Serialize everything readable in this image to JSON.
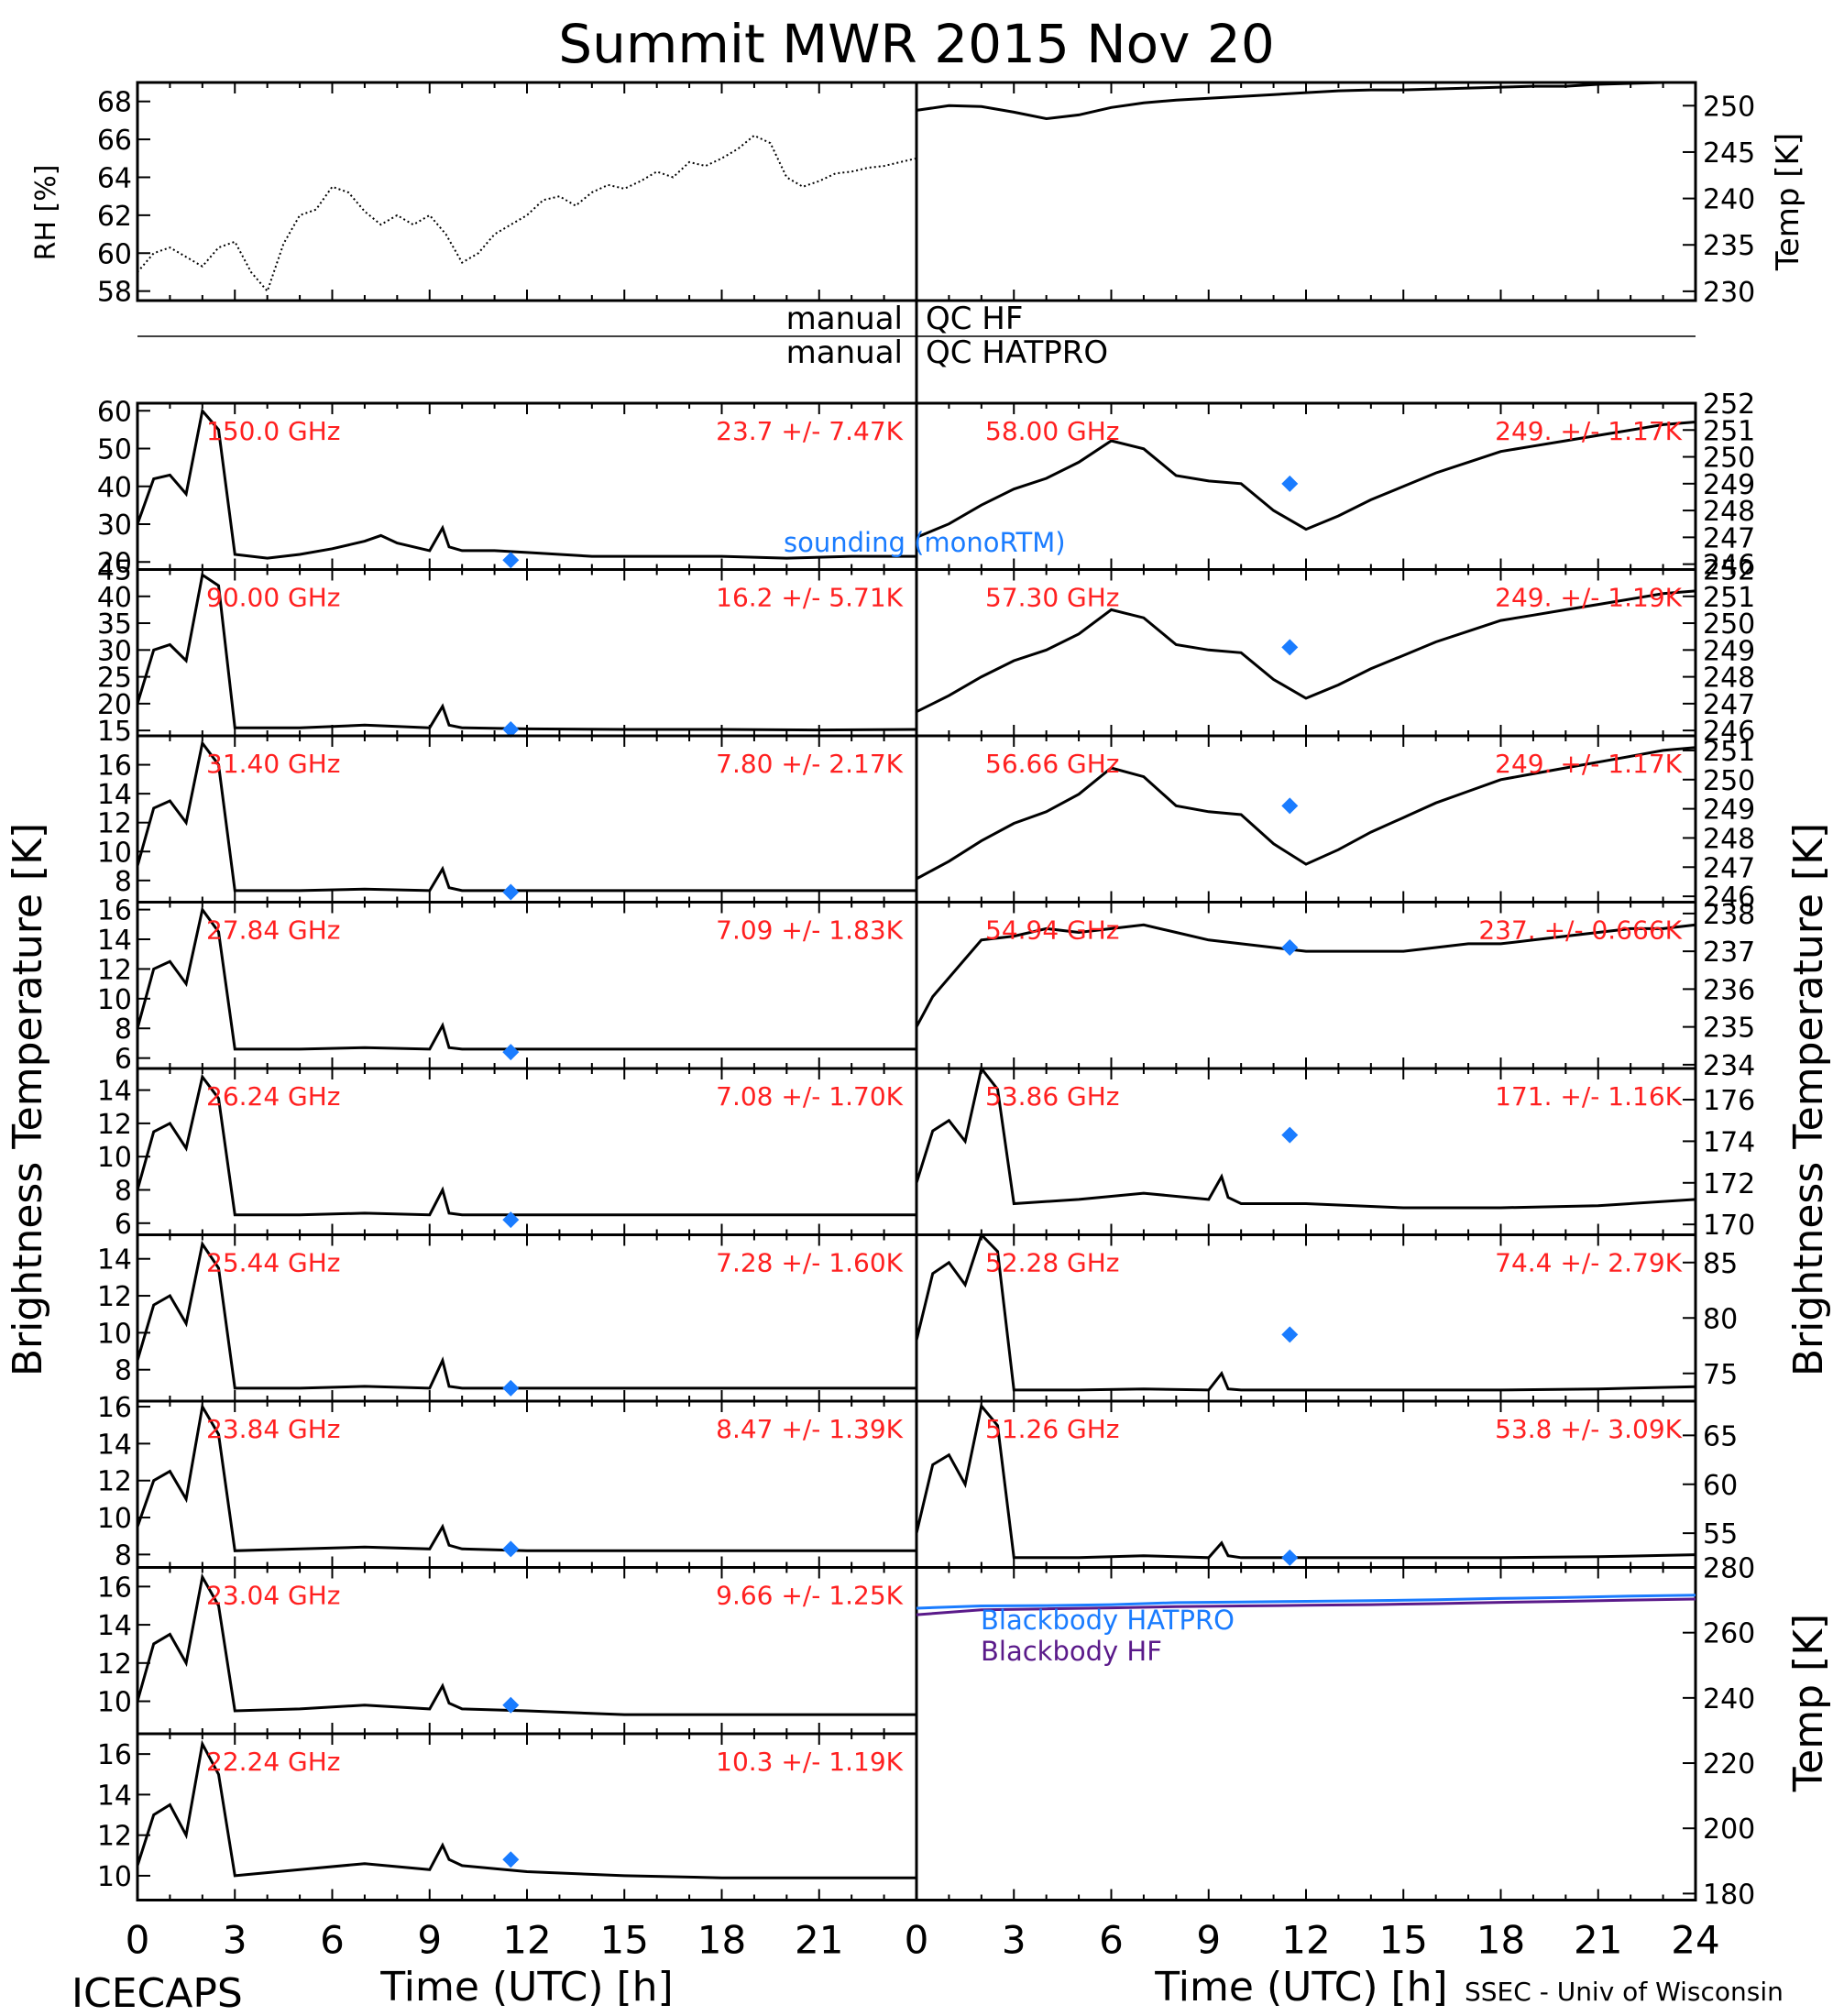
{
  "title": "Summit MWR 2015 Nov 20",
  "footer_left": "ICECAPS",
  "footer_right": "SSEC - Univ of Wisconsin",
  "colors": {
    "red": "#ff2020",
    "blue": "#1a7cff",
    "purple": "#5a1a8a",
    "black": "#000000"
  },
  "qc": {
    "left_1": "manual",
    "right_1": "QC HF",
    "left_2": "manual",
    "right_2": "QC HATPRO"
  },
  "left_ylabel": "Brightness Temperature [K]",
  "right_ylabel": "Brightness Temperature [K]",
  "rh_ylabel": "RH [%]",
  "temp_ylabel": "Temp [K]",
  "bb_ylabel": "Temp [K]",
  "xlabel": "Time (UTC) [h]",
  "sounding_legend": "sounding (monoRTM)",
  "bb_legend": [
    "Blackbody HATPRO",
    "Blackbody HF"
  ],
  "chart_data": [
    {
      "id": "rh",
      "type": "scatter",
      "ylabel": "RH [%]",
      "xlim": [
        0,
        24
      ],
      "ylim": [
        57.5,
        69
      ],
      "yticks": [
        58,
        60,
        62,
        64,
        66,
        68
      ],
      "x": [
        0,
        0.5,
        1,
        1.5,
        2,
        2.5,
        3,
        3.5,
        4,
        4.5,
        5,
        5.5,
        6,
        6.5,
        7,
        7.5,
        8,
        8.5,
        9,
        9.5,
        10,
        10.5,
        11,
        11.5,
        12,
        12.5,
        13,
        13.5,
        14,
        14.5,
        15,
        15.5,
        16,
        16.5,
        17,
        17.5,
        18,
        18.5,
        19,
        19.5,
        20,
        20.5,
        21,
        21.5,
        22,
        22.5,
        23,
        23.5,
        24
      ],
      "y": [
        59,
        60,
        60.3,
        59.8,
        59.3,
        60.3,
        60.6,
        59,
        58,
        60.5,
        62,
        62.3,
        63.5,
        63.2,
        62.2,
        61.5,
        62,
        61.5,
        62,
        61,
        59.5,
        60,
        61,
        61.5,
        62,
        62.8,
        63,
        62.5,
        63.2,
        63.6,
        63.4,
        63.8,
        64.3,
        64,
        64.8,
        64.6,
        65,
        65.5,
        66.2,
        65.8,
        64,
        63.5,
        63.8,
        64.2,
        64.3,
        64.5,
        64.6,
        64.8,
        65
      ]
    },
    {
      "id": "air-temp",
      "type": "line",
      "ylabel": "Temp [K]",
      "xlim": [
        0,
        24
      ],
      "ylim": [
        229,
        252.5
      ],
      "yticks": [
        230,
        235,
        240,
        245,
        250
      ],
      "x": [
        0,
        1,
        2,
        3,
        4,
        5,
        6,
        7,
        8,
        9,
        10,
        11,
        12,
        13,
        14,
        15,
        16,
        17,
        18,
        19,
        20,
        21,
        22,
        23,
        24
      ],
      "y": [
        249.5,
        250,
        249.9,
        249.3,
        248.6,
        249,
        249.8,
        250.3,
        250.6,
        250.8,
        251,
        251.2,
        251.4,
        251.6,
        251.7,
        251.7,
        251.8,
        251.9,
        252,
        252.1,
        252.1,
        252.3,
        252.4,
        252.6,
        252.8
      ]
    },
    {
      "id": "l150",
      "type": "line",
      "freq": "150.0 GHz",
      "stats": "23.7 +/- 7.47K",
      "ylim": [
        18,
        62
      ],
      "yticks": [
        20,
        30,
        40,
        50,
        60
      ],
      "x": [
        0,
        0.5,
        1,
        1.5,
        2,
        2.5,
        3,
        4,
        5,
        6,
        7,
        7.5,
        8,
        9,
        9.4,
        9.6,
        10,
        11,
        12,
        14,
        16,
        18,
        20,
        22,
        24
      ],
      "y": [
        30,
        42,
        43,
        38,
        60,
        55,
        22,
        21,
        22,
        23.5,
        25.5,
        27,
        25,
        23,
        29,
        24,
        23,
        23,
        22.5,
        21.5,
        21.5,
        21.5,
        21,
        21.5,
        21.5
      ],
      "sounding": {
        "x": 11.5,
        "y": 20.5
      }
    },
    {
      "id": "l90",
      "type": "line",
      "freq": "90.00 GHz",
      "stats": "16.2 +/- 5.71K",
      "ylim": [
        14,
        45
      ],
      "yticks": [
        15,
        20,
        25,
        30,
        35,
        40,
        45
      ],
      "x": [
        0,
        0.5,
        1,
        1.5,
        2,
        2.5,
        3,
        5,
        7,
        9,
        9.4,
        9.6,
        10,
        12,
        15,
        18,
        21,
        24
      ],
      "y": [
        20,
        30,
        31,
        28,
        44,
        42,
        15.5,
        15.5,
        16,
        15.5,
        19.5,
        16,
        15.5,
        15.3,
        15.2,
        15.2,
        15.1,
        15.2
      ],
      "sounding": {
        "x": 11.5,
        "y": 15.2
      }
    },
    {
      "id": "l3140",
      "type": "line",
      "freq": "31.40 GHz",
      "stats": "7.80 +/- 2.17K",
      "ylim": [
        6.5,
        18
      ],
      "yticks": [
        8,
        10,
        12,
        14,
        16
      ],
      "x": [
        0,
        0.5,
        1,
        1.5,
        2,
        2.5,
        3,
        5,
        7,
        9,
        9.4,
        9.6,
        10,
        12,
        15,
        18,
        21,
        24
      ],
      "y": [
        9,
        13,
        13.5,
        12,
        17.5,
        16,
        7.3,
        7.3,
        7.4,
        7.3,
        8.8,
        7.5,
        7.3,
        7.3,
        7.3,
        7.3,
        7.3,
        7.3
      ],
      "sounding": {
        "x": 11.5,
        "y": 7.2
      }
    },
    {
      "id": "l2784",
      "type": "line",
      "freq": "27.84 GHz",
      "stats": "7.09 +/- 1.83K",
      "ylim": [
        5.3,
        16.5
      ],
      "yticks": [
        6,
        8,
        10,
        12,
        14,
        16
      ],
      "x": [
        0,
        0.5,
        1,
        1.5,
        2,
        2.5,
        3,
        5,
        7,
        9,
        9.4,
        9.6,
        10,
        12,
        15,
        18,
        21,
        24
      ],
      "y": [
        8,
        12,
        12.5,
        11,
        16,
        14.5,
        6.6,
        6.6,
        6.7,
        6.6,
        8.2,
        6.7,
        6.6,
        6.6,
        6.6,
        6.6,
        6.6,
        6.6
      ],
      "sounding": {
        "x": 11.5,
        "y": 6.4
      }
    },
    {
      "id": "l2624",
      "type": "line",
      "freq": "26.24 GHz",
      "stats": "7.08 +/- 1.70K",
      "ylim": [
        5.3,
        15.3
      ],
      "yticks": [
        6,
        8,
        10,
        12,
        14
      ],
      "x": [
        0,
        0.5,
        1,
        1.5,
        2,
        2.5,
        3,
        5,
        7,
        9,
        9.4,
        9.6,
        10,
        12,
        15,
        18,
        21,
        24
      ],
      "y": [
        8,
        11.5,
        12,
        10.5,
        14.8,
        13.5,
        6.5,
        6.5,
        6.6,
        6.5,
        8,
        6.6,
        6.5,
        6.5,
        6.5,
        6.5,
        6.5,
        6.5
      ],
      "sounding": {
        "x": 11.5,
        "y": 6.2
      }
    },
    {
      "id": "l2544",
      "type": "line",
      "freq": "25.44 GHz",
      "stats": "7.28 +/- 1.60K",
      "ylim": [
        6.3,
        15.3
      ],
      "yticks": [
        8,
        10,
        12,
        14
      ],
      "x": [
        0,
        0.5,
        1,
        1.5,
        2,
        2.5,
        3,
        5,
        7,
        9,
        9.4,
        9.6,
        10,
        12,
        15,
        18,
        21,
        24
      ],
      "y": [
        8.5,
        11.5,
        12,
        10.5,
        14.8,
        13.5,
        7,
        7,
        7.1,
        7,
        8.5,
        7.1,
        7,
        7,
        7,
        7,
        7,
        7
      ],
      "sounding": {
        "x": 11.5,
        "y": 7
      }
    },
    {
      "id": "l2384",
      "type": "line",
      "freq": "23.84 GHz",
      "stats": "8.47 +/- 1.39K",
      "ylim": [
        7.3,
        16.3
      ],
      "yticks": [
        8,
        10,
        12,
        14,
        16
      ],
      "x": [
        0,
        0.5,
        1,
        1.5,
        2,
        2.5,
        3,
        5,
        7,
        9,
        9.4,
        9.6,
        10,
        12,
        15,
        18,
        21,
        24
      ],
      "y": [
        9.5,
        12,
        12.5,
        11,
        16,
        14.5,
        8.2,
        8.3,
        8.4,
        8.3,
        9.5,
        8.5,
        8.3,
        8.2,
        8.2,
        8.2,
        8.2,
        8.2
      ],
      "sounding": {
        "x": 11.5,
        "y": 8.3
      }
    },
    {
      "id": "l2304",
      "type": "line",
      "freq": "23.04 GHz",
      "stats": "9.66 +/- 1.25K",
      "ylim": [
        8.3,
        17
      ],
      "yticks": [
        10,
        12,
        14,
        16
      ],
      "x": [
        0,
        0.5,
        1,
        1.5,
        2,
        2.5,
        3,
        5,
        7,
        9,
        9.4,
        9.6,
        10,
        12,
        15,
        18,
        21,
        24
      ],
      "y": [
        10,
        13,
        13.5,
        12,
        16.5,
        15,
        9.5,
        9.6,
        9.8,
        9.6,
        10.8,
        9.9,
        9.6,
        9.5,
        9.3,
        9.3,
        9.3,
        9.3
      ],
      "sounding": {
        "x": 11.5,
        "y": 9.8
      }
    },
    {
      "id": "l2224",
      "type": "line",
      "freq": "22.24 GHz",
      "stats": "10.3 +/- 1.19K",
      "ylim": [
        8.8,
        17
      ],
      "yticks": [
        10,
        12,
        14,
        16
      ],
      "x": [
        0,
        0.5,
        1,
        1.5,
        2,
        2.5,
        3,
        5,
        7,
        9,
        9.4,
        9.6,
        10,
        12,
        15,
        18,
        21,
        24
      ],
      "y": [
        10.5,
        13,
        13.5,
        12,
        16.5,
        15,
        10,
        10.3,
        10.6,
        10.3,
        11.5,
        10.8,
        10.5,
        10.2,
        10,
        9.9,
        9.9,
        9.9
      ],
      "sounding": {
        "x": 11.5,
        "y": 10.8
      }
    },
    {
      "id": "r5800",
      "type": "line",
      "freq": "58.00 GHz",
      "stats": "249. +/- 1.17K",
      "ylim": [
        245.8,
        252
      ],
      "yticks": [
        246,
        247,
        248,
        249,
        250,
        251,
        252
      ],
      "x": [
        0,
        1,
        2,
        3,
        4,
        5,
        6,
        7,
        8,
        9,
        10,
        11,
        12,
        13,
        14,
        15,
        16,
        17,
        18,
        19,
        20,
        21,
        22,
        23,
        24
      ],
      "y": [
        247,
        247.5,
        248.2,
        248.8,
        249.2,
        249.8,
        250.6,
        250.3,
        249.3,
        249.1,
        249,
        248,
        247.3,
        247.8,
        248.4,
        248.9,
        249.4,
        249.8,
        250.2,
        250.4,
        250.6,
        250.8,
        251,
        251.2,
        251.3
      ],
      "sounding": {
        "x": 11.5,
        "y": 249
      }
    },
    {
      "id": "r5730",
      "type": "line",
      "freq": "57.30 GHz",
      "stats": "249. +/- 1.19K",
      "ylim": [
        245.8,
        252
      ],
      "yticks": [
        246,
        247,
        248,
        249,
        250,
        251,
        252
      ],
      "x": [
        0,
        1,
        2,
        3,
        4,
        5,
        6,
        7,
        8,
        9,
        10,
        11,
        12,
        13,
        14,
        15,
        16,
        17,
        18,
        19,
        20,
        21,
        22,
        23,
        24
      ],
      "y": [
        246.7,
        247.3,
        248,
        248.6,
        249,
        249.6,
        250.5,
        250.2,
        249.2,
        249,
        248.9,
        247.9,
        247.2,
        247.7,
        248.3,
        248.8,
        249.3,
        249.7,
        250.1,
        250.3,
        250.5,
        250.7,
        250.9,
        251.1,
        251.2
      ],
      "sounding": {
        "x": 11.5,
        "y": 249.1
      }
    },
    {
      "id": "r5666",
      "type": "line",
      "freq": "56.66 GHz",
      "stats": "249. +/- 1.17K",
      "ylim": [
        245.8,
        251.5
      ],
      "yticks": [
        246,
        247,
        248,
        249,
        250,
        251
      ],
      "x": [
        0,
        1,
        2,
        3,
        4,
        5,
        6,
        7,
        8,
        9,
        10,
        11,
        12,
        13,
        14,
        15,
        16,
        17,
        18,
        19,
        20,
        21,
        22,
        23,
        24
      ],
      "y": [
        246.6,
        247.2,
        247.9,
        248.5,
        248.9,
        249.5,
        250.4,
        250.1,
        249.1,
        248.9,
        248.8,
        247.8,
        247.1,
        247.6,
        248.2,
        248.7,
        249.2,
        249.6,
        250,
        250.2,
        250.4,
        250.6,
        250.8,
        251,
        251.1
      ],
      "sounding": {
        "x": 11.5,
        "y": 249.1
      }
    },
    {
      "id": "r5494",
      "type": "line",
      "freq": "54.94 GHz",
      "stats": "237. +/- 0.666K",
      "ylim": [
        233.9,
        238.3
      ],
      "yticks": [
        234,
        235,
        236,
        237,
        238
      ],
      "x": [
        0,
        0.5,
        1,
        1.5,
        2,
        3,
        4,
        5,
        6,
        7,
        8,
        9,
        10,
        11,
        12,
        13,
        14,
        15,
        16,
        17,
        18,
        19,
        20,
        21,
        22,
        23,
        24
      ],
      "y": [
        235,
        235.8,
        236.3,
        236.8,
        237.3,
        237.4,
        237.6,
        237.5,
        237.6,
        237.7,
        237.5,
        237.3,
        237.2,
        237.1,
        237,
        237,
        237,
        237,
        237.1,
        237.2,
        237.2,
        237.3,
        237.4,
        237.5,
        237.6,
        237.6,
        237.7
      ],
      "sounding": {
        "x": 11.5,
        "y": 237.1
      }
    },
    {
      "id": "r5386",
      "type": "line",
      "freq": "53.86 GHz",
      "stats": "171. +/- 1.16K",
      "ylim": [
        169.5,
        177.5
      ],
      "yticks": [
        170,
        172,
        174,
        176
      ],
      "x": [
        0,
        0.5,
        1,
        1.5,
        2,
        2.5,
        3,
        5,
        7,
        9,
        9.4,
        9.6,
        10,
        12,
        15,
        18,
        21,
        24
      ],
      "y": [
        172,
        174.5,
        175,
        174,
        177.5,
        176.5,
        171,
        171.2,
        171.5,
        171.2,
        172.3,
        171.3,
        171,
        171,
        170.8,
        170.8,
        170.9,
        171.2
      ],
      "sounding": {
        "x": 11.5,
        "y": 174.3
      }
    },
    {
      "id": "r5228",
      "type": "line",
      "freq": "52.28 GHz",
      "stats": "74.4 +/- 2.79K",
      "ylim": [
        72.5,
        87.5
      ],
      "yticks": [
        75,
        80,
        85
      ],
      "x": [
        0,
        0.5,
        1,
        1.5,
        2,
        2.5,
        3,
        5,
        7,
        9,
        9.4,
        9.6,
        10,
        12,
        15,
        18,
        21,
        24
      ],
      "y": [
        78,
        84,
        85,
        83,
        88,
        86,
        73.5,
        73.5,
        73.6,
        73.5,
        75,
        73.6,
        73.5,
        73.5,
        73.5,
        73.5,
        73.6,
        73.8
      ],
      "sounding": {
        "x": 11.5,
        "y": 78.5
      }
    },
    {
      "id": "r5126",
      "type": "line",
      "freq": "51.26 GHz",
      "stats": "53.8 +/- 3.09K",
      "ylim": [
        51.5,
        68.5
      ],
      "yticks": [
        55,
        60,
        65
      ],
      "x": [
        0,
        0.5,
        1,
        1.5,
        2,
        2.5,
        3,
        5,
        7,
        9,
        9.4,
        9.6,
        10,
        12,
        15,
        18,
        21,
        24
      ],
      "y": [
        55,
        62,
        63,
        60,
        68,
        66,
        52.5,
        52.5,
        52.7,
        52.5,
        54,
        52.7,
        52.5,
        52.5,
        52.5,
        52.5,
        52.6,
        52.8
      ],
      "sounding": {
        "x": 11.5,
        "y": 52.5
      }
    },
    {
      "id": "bb",
      "type": "line",
      "ylabel": "Temp [K]",
      "xlim": [
        0,
        24
      ],
      "ylim": [
        178,
        280
      ],
      "yticks": [
        180,
        200,
        220,
        240,
        260,
        280
      ],
      "xticks": [
        0,
        3,
        6,
        9,
        12,
        15,
        18,
        21,
        24
      ],
      "series": [
        {
          "name": "Blackbody HATPRO",
          "color": "#1a7cff",
          "x": [
            0,
            2,
            4,
            6,
            8,
            10,
            12,
            14,
            16,
            18,
            20,
            22,
            24
          ],
          "y": [
            267.5,
            268.2,
            268.3,
            268.6,
            269.2,
            269.4,
            269.6,
            269.8,
            270.1,
            270.5,
            270.8,
            271.2,
            271.5
          ]
        },
        {
          "name": "Blackbody HF",
          "color": "#5a1a8a",
          "x": [
            0,
            2,
            4,
            6,
            8,
            10,
            12,
            14,
            16,
            18,
            20,
            22,
            24
          ],
          "y": [
            265.5,
            267,
            267.3,
            267.6,
            268,
            268.2,
            268.4,
            268.6,
            268.9,
            269.3,
            269.6,
            270,
            270.3
          ]
        }
      ]
    }
  ]
}
